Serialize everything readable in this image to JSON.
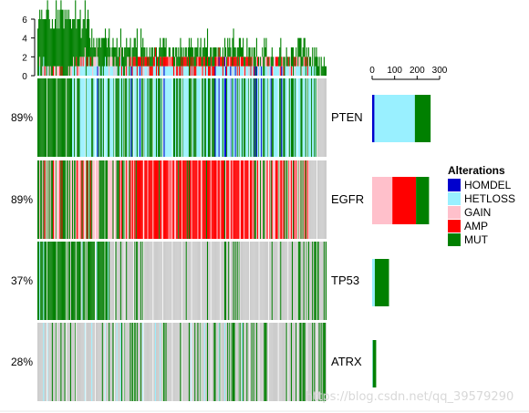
{
  "chart_data": {
    "type": "heatmap",
    "genes": [
      "PTEN",
      "EGFR",
      "TP53",
      "ATRX"
    ],
    "percentages": [
      "89%",
      "89%",
      "37%",
      "28%"
    ],
    "legend": {
      "title": "Alterations",
      "entries": [
        {
          "name": "HOMDEL",
          "color": "#0000CD"
        },
        {
          "name": "HETLOSS",
          "color": "#99F0FF"
        },
        {
          "name": "GAIN",
          "color": "#FFC0CB"
        },
        {
          "name": "AMP",
          "color": "#FF0000"
        },
        {
          "name": "MUT",
          "color": "#008000"
        }
      ]
    },
    "colors": {
      "HOMDEL": "#0000CD",
      "HETLOSS": "#99F0FF",
      "GAIN": "#FFC0CB",
      "AMP": "#FF0000",
      "MUT": "#008000",
      "none": "#CCCCCC"
    },
    "top_bar": {
      "ticks": [
        0,
        2,
        4,
        6
      ],
      "ylim": [
        0,
        6
      ]
    },
    "right_bar": {
      "ticks": [
        0,
        100,
        200,
        300
      ],
      "xlim": [
        0,
        300
      ],
      "rows": [
        {
          "gene": "PTEN",
          "segments": [
            {
              "type": "HOMDEL",
              "value": 10
            },
            {
              "type": "HETLOSS",
              "value": 180
            },
            {
              "type": "MUT",
              "value": 70
            }
          ]
        },
        {
          "gene": "EGFR",
          "segments": [
            {
              "type": "GAIN",
              "value": 90
            },
            {
              "type": "AMP",
              "value": 105
            },
            {
              "type": "MUT",
              "value": 58
            }
          ]
        },
        {
          "gene": "TP53",
          "segments": [
            {
              "type": "HETLOSS",
              "value": 12
            },
            {
              "type": "MUT",
              "value": 63
            }
          ]
        },
        {
          "gene": "ATRX",
          "segments": [
            {
              "type": "HETLOSS",
              "value": 3
            },
            {
              "type": "MUT",
              "value": 15
            }
          ]
        }
      ]
    },
    "samples": 300
  },
  "watermark": "https://blog.csdn.net/qq_39579290"
}
